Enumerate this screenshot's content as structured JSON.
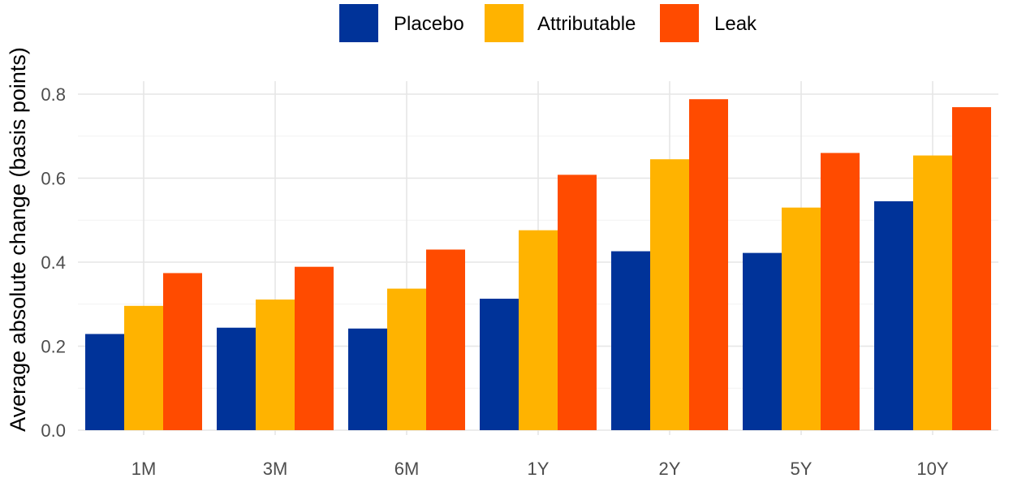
{
  "chart_data": {
    "type": "bar",
    "title": "",
    "xlabel": "",
    "ylabel": "Average absolute change (basis points)",
    "categories": [
      "1M",
      "3M",
      "6M",
      "1Y",
      "2Y",
      "5Y",
      "10Y"
    ],
    "series": [
      {
        "name": "Placebo",
        "color": "#003399",
        "values": [
          0.229,
          0.244,
          0.242,
          0.313,
          0.426,
          0.422,
          0.545
        ]
      },
      {
        "name": "Attributable",
        "color": "#FFB300",
        "values": [
          0.296,
          0.311,
          0.337,
          0.476,
          0.645,
          0.53,
          0.654
        ]
      },
      {
        "name": "Leak",
        "color": "#FF4B00",
        "values": [
          0.374,
          0.389,
          0.43,
          0.608,
          0.788,
          0.66,
          0.769
        ]
      }
    ],
    "ylim": [
      0,
      0.8
    ],
    "yticks": [
      "0.0",
      "0.2",
      "0.4",
      "0.6",
      "0.8"
    ],
    "grid": true,
    "legend_position": "top"
  }
}
